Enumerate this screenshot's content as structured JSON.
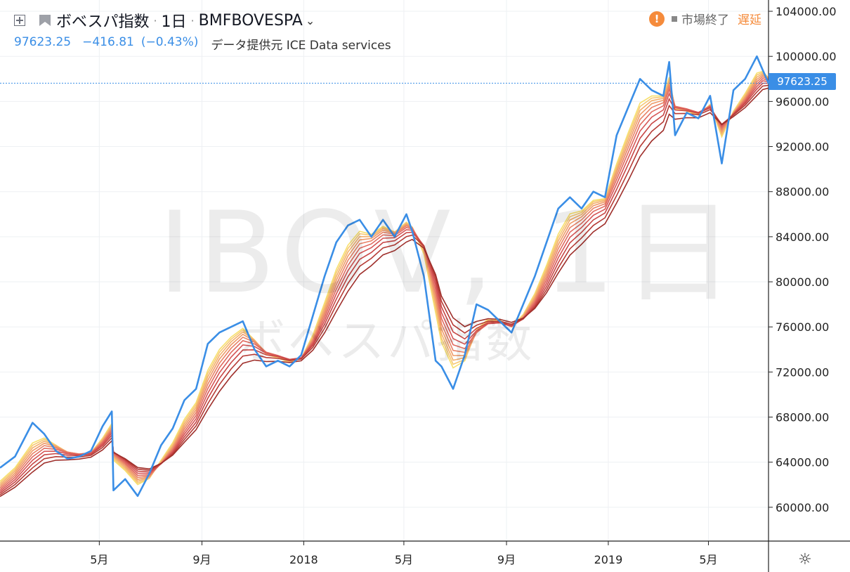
{
  "header": {
    "name": "ボベスパ指数",
    "interval": "1日",
    "symbol": "BMFBOVESPA",
    "price": "97623.25",
    "change": "−416.81",
    "change_pct": "(−0.43%)",
    "source": "データ提供元 ICE Data services"
  },
  "status": {
    "warn": "!",
    "market": "市場終了",
    "delay": "遅延"
  },
  "watermark": {
    "ticker": "IBOV, 1日",
    "name": "ボベスパ指数"
  },
  "last_price_label": "97623.25",
  "colors": {
    "price": "#3a8ee6",
    "ribbon": [
      "#f7e06e",
      "#f6c874",
      "#f3b06c",
      "#ef9b69",
      "#e98266",
      "#e06a5f",
      "#d65555",
      "#c84645",
      "#b63b35",
      "#9f2f2b"
    ]
  },
  "chart_data": {
    "type": "line",
    "title": "ボベスパ指数",
    "y_axis": {
      "range": [
        57000,
        105000
      ],
      "ticks": [
        104000,
        100000,
        96000,
        92000,
        88000,
        84000,
        80000,
        76000,
        72000,
        68000,
        64000,
        60000
      ],
      "tick_labels": [
        "104000.00",
        "100000.00",
        "96000.00",
        "92000.00",
        "88000.00",
        "84000.00",
        "80000.00",
        "76000.00",
        "72000.00",
        "68000.00",
        "64000.00",
        "60000.00"
      ]
    },
    "x_axis": {
      "range": [
        "2017-01-02",
        "2019-07-12"
      ],
      "ticks": [
        "2017-05-01",
        "2017-09-01",
        "2018-01-01",
        "2018-05-01",
        "2018-09-01",
        "2019-01-01",
        "2019-05-01"
      ],
      "tick_labels": [
        "5月",
        "9月",
        "2018",
        "5月",
        "9月",
        "2019",
        "5月"
      ]
    },
    "grid": true,
    "series": [
      {
        "name": "IBOV",
        "x": [
          "2017-01-02",
          "2017-01-20",
          "2017-02-10",
          "2017-02-24",
          "2017-03-10",
          "2017-03-24",
          "2017-04-07",
          "2017-04-21",
          "2017-05-05",
          "2017-05-16",
          "2017-05-18",
          "2017-06-01",
          "2017-06-16",
          "2017-06-30",
          "2017-07-14",
          "2017-07-28",
          "2017-08-11",
          "2017-08-25",
          "2017-09-08",
          "2017-09-22",
          "2017-10-06",
          "2017-10-20",
          "2017-11-03",
          "2017-11-17",
          "2017-12-01",
          "2017-12-15",
          "2017-12-29",
          "2018-01-12",
          "2018-01-26",
          "2018-02-09",
          "2018-02-23",
          "2018-03-09",
          "2018-03-23",
          "2018-04-06",
          "2018-04-20",
          "2018-05-04",
          "2018-05-11",
          "2018-05-25",
          "2018-06-08",
          "2018-06-15",
          "2018-06-29",
          "2018-07-13",
          "2018-07-27",
          "2018-08-10",
          "2018-08-24",
          "2018-09-07",
          "2018-09-21",
          "2018-10-05",
          "2018-10-19",
          "2018-11-02",
          "2018-11-16",
          "2018-11-30",
          "2018-12-14",
          "2018-12-28",
          "2019-01-11",
          "2019-01-25",
          "2019-02-08",
          "2019-02-22",
          "2019-03-08",
          "2019-03-15",
          "2019-03-22",
          "2019-04-05",
          "2019-04-19",
          "2019-05-03",
          "2019-05-17",
          "2019-05-31",
          "2019-06-14",
          "2019-06-28",
          "2019-07-05",
          "2019-07-12"
        ],
        "values": [
          63500,
          64500,
          67500,
          66500,
          65000,
          64300,
          64500,
          65000,
          67200,
          68500,
          61500,
          62500,
          61000,
          63000,
          65500,
          67000,
          69500,
          70500,
          74500,
          75500,
          76000,
          76500,
          74000,
          72500,
          73000,
          72500,
          73500,
          77000,
          80500,
          83500,
          85000,
          85500,
          84000,
          85500,
          84000,
          86000,
          84500,
          80500,
          73000,
          72500,
          70500,
          73500,
          78000,
          77500,
          76500,
          75500,
          78000,
          80500,
          83500,
          86500,
          87500,
          86500,
          88000,
          87500,
          93000,
          95500,
          98000,
          97000,
          96500,
          99500,
          93000,
          95000,
          94500,
          96500,
          90500,
          97000,
          98000,
          100000,
          98800,
          97623.25
        ]
      }
    ],
    "ribbon_note": "moving-average ribbon (10 bands)"
  }
}
